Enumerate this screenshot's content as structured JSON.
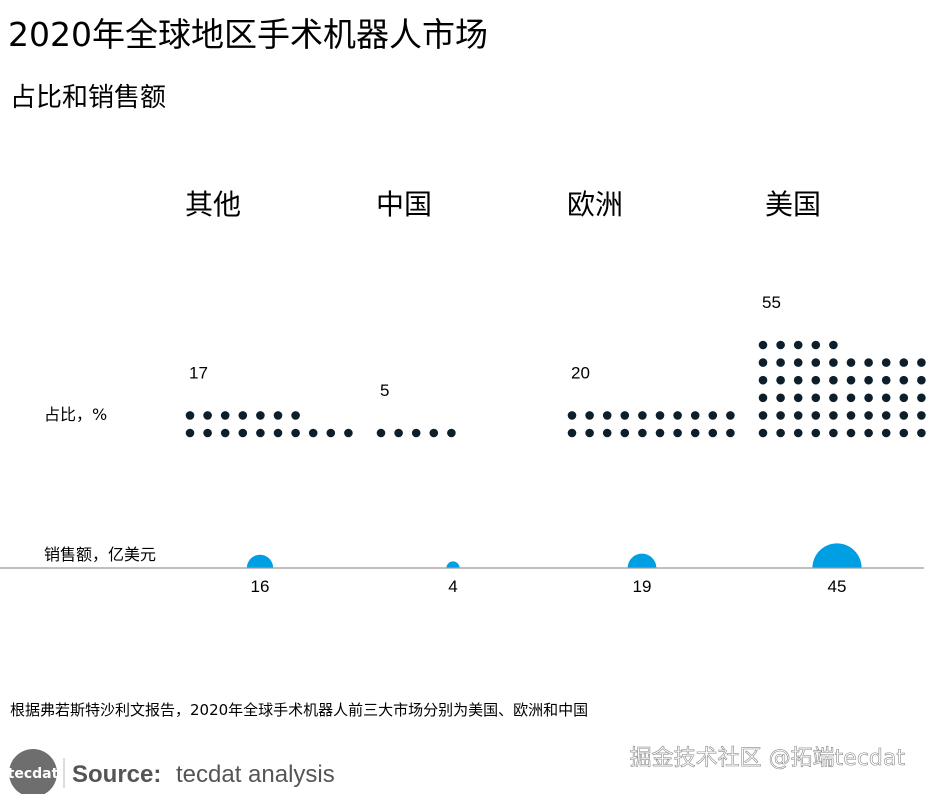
{
  "title": "2020年全球地区手术机器人市场",
  "subtitle": "占比和销售额",
  "row_labels": {
    "share": "占比，%",
    "sales": "销售额，亿美元"
  },
  "footnote": "根据弗若斯特沙利文报告，2020年全球手术机器人前三大市场分别为美国、欧洲和中国",
  "source": {
    "label": "Source:",
    "text": "tecdat analysis",
    "logo": "tecdat"
  },
  "watermark": "掘金技术社区 @拓端tecdat",
  "colors": {
    "dot": "#0e1f2c",
    "bubble": "#009fe3",
    "axis": "#9a9a9a"
  },
  "chart_data": {
    "type": "bubble-dot",
    "title": "2020年全球地区手术机器人市场",
    "subtitle": "占比和销售额",
    "categories": [
      "其他",
      "中国",
      "欧洲",
      "美国"
    ],
    "series": [
      {
        "name": "占比，%",
        "values": [
          17,
          5,
          20,
          55
        ]
      },
      {
        "name": "销售额，亿美元",
        "values": [
          16,
          4,
          19,
          45
        ]
      }
    ]
  }
}
